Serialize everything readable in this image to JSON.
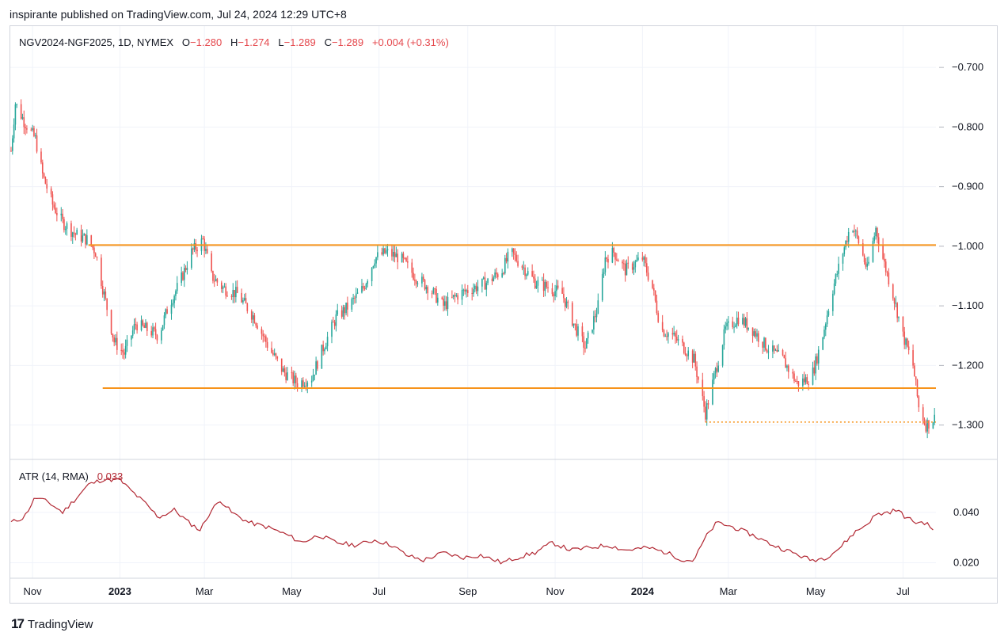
{
  "header": {
    "published": "inspirante published on TradingView.com, Jul 24, 2024 12:29 UTC+8"
  },
  "legend": {
    "symbol": "NGV2024-NGF2025, 1D, NYMEX",
    "o_label": "O",
    "o_value": "−1.280",
    "h_label": "H",
    "h_value": "−1.274",
    "l_label": "L",
    "l_value": "−1.289",
    "c_label": "C",
    "c_value": "−1.289",
    "change": "+0.004 (+0.31%)"
  },
  "atr": {
    "label": "ATR (14, RMA)",
    "value": "0.033"
  },
  "brand": {
    "logo": "17",
    "name": "TradingView"
  },
  "colors": {
    "up": "#26a69a",
    "down": "#ef5350",
    "level": "#f7931a",
    "atr_line": "#b22833",
    "grid": "#f0f3fa"
  },
  "chart_data": [
    {
      "type": "candlestick",
      "title": "NGV2024-NGF2025, 1D, NYMEX",
      "xlim": [
        "2022-10-17",
        "2024-07-24"
      ],
      "ylim": [
        -1.355,
        -0.64
      ],
      "y_ticks": [
        "−0.700",
        "−0.800",
        "−0.900",
        "−1.000",
        "−1.100",
        "−1.200",
        "−1.300"
      ],
      "y_tick_values": [
        -0.7,
        -0.8,
        -0.9,
        -1.0,
        -1.1,
        -1.2,
        -1.3
      ],
      "x_ticks": [
        {
          "label": "Nov",
          "date": "2022-11-01",
          "bold": false
        },
        {
          "label": "2023",
          "date": "2023-01-01",
          "bold": true
        },
        {
          "label": "Mar",
          "date": "2023-03-01",
          "bold": false
        },
        {
          "label": "May",
          "date": "2023-05-01",
          "bold": false
        },
        {
          "label": "Jul",
          "date": "2023-07-01",
          "bold": false
        },
        {
          "label": "Sep",
          "date": "2023-09-01",
          "bold": false
        },
        {
          "label": "Nov",
          "date": "2023-11-01",
          "bold": false
        },
        {
          "label": "2024",
          "date": "2024-01-01",
          "bold": true
        },
        {
          "label": "Mar",
          "date": "2024-03-01",
          "bold": false
        },
        {
          "label": "May",
          "date": "2024-05-01",
          "bold": false
        },
        {
          "label": "Jul",
          "date": "2024-07-01",
          "bold": false
        }
      ],
      "path": [
        [
          "2022-10-17",
          -0.84
        ],
        [
          "2022-10-20",
          -0.76
        ],
        [
          "2022-10-26",
          -0.79
        ],
        [
          "2022-11-03",
          -0.82
        ],
        [
          "2022-11-08",
          -0.88
        ],
        [
          "2022-11-15",
          -0.93
        ],
        [
          "2022-11-22",
          -0.96
        ],
        [
          "2022-12-01",
          -0.98
        ],
        [
          "2022-12-10",
          -0.99
        ],
        [
          "2022-12-15",
          -1.01
        ],
        [
          "2022-12-20",
          -1.07
        ],
        [
          "2022-12-28",
          -1.16
        ],
        [
          "2023-01-04",
          -1.18
        ],
        [
          "2023-01-12",
          -1.13
        ],
        [
          "2023-01-20",
          -1.14
        ],
        [
          "2023-01-28",
          -1.15
        ],
        [
          "2023-02-04",
          -1.1
        ],
        [
          "2023-02-12",
          -1.06
        ],
        [
          "2023-02-20",
          -1.01
        ],
        [
          "2023-02-28",
          -0.99
        ],
        [
          "2023-03-06",
          -1.05
        ],
        [
          "2023-03-14",
          -1.07
        ],
        [
          "2023-03-24",
          -1.08
        ],
        [
          "2023-04-05",
          -1.12
        ],
        [
          "2023-04-15",
          -1.17
        ],
        [
          "2023-04-25",
          -1.21
        ],
        [
          "2023-05-05",
          -1.23
        ],
        [
          "2023-05-15",
          -1.22
        ],
        [
          "2023-05-23",
          -1.17
        ],
        [
          "2023-06-01",
          -1.12
        ],
        [
          "2023-06-10",
          -1.1
        ],
        [
          "2023-06-20",
          -1.07
        ],
        [
          "2023-06-28",
          -1.02
        ],
        [
          "2023-07-06",
          -1.01
        ],
        [
          "2023-07-16",
          -1.02
        ],
        [
          "2023-07-26",
          -1.05
        ],
        [
          "2023-08-05",
          -1.07
        ],
        [
          "2023-08-15",
          -1.1
        ],
        [
          "2023-08-26",
          -1.08
        ],
        [
          "2023-09-05",
          -1.07
        ],
        [
          "2023-09-15",
          -1.06
        ],
        [
          "2023-09-25",
          -1.04
        ],
        [
          "2023-10-01",
          -1.01
        ],
        [
          "2023-10-08",
          -1.03
        ],
        [
          "2023-10-18",
          -1.06
        ],
        [
          "2023-10-28",
          -1.07
        ],
        [
          "2023-11-06",
          -1.08
        ],
        [
          "2023-11-14",
          -1.13
        ],
        [
          "2023-11-22",
          -1.17
        ],
        [
          "2023-12-01",
          -1.1
        ],
        [
          "2023-12-06",
          -1.02
        ],
        [
          "2023-12-12",
          -1.01
        ],
        [
          "2023-12-20",
          -1.04
        ],
        [
          "2024-01-01",
          -1.02
        ],
        [
          "2024-01-08",
          -1.07
        ],
        [
          "2024-01-14",
          -1.14
        ],
        [
          "2024-01-22",
          -1.15
        ],
        [
          "2024-01-30",
          -1.17
        ],
        [
          "2024-02-06",
          -1.19
        ],
        [
          "2024-02-14",
          -1.28
        ],
        [
          "2024-02-20",
          -1.22
        ],
        [
          "2024-02-28",
          -1.14
        ],
        [
          "2024-03-08",
          -1.12
        ],
        [
          "2024-03-18",
          -1.14
        ],
        [
          "2024-03-28",
          -1.17
        ],
        [
          "2024-04-08",
          -1.19
        ],
        [
          "2024-04-18",
          -1.23
        ],
        [
          "2024-04-28",
          -1.22
        ],
        [
          "2024-05-05",
          -1.16
        ],
        [
          "2024-05-12",
          -1.08
        ],
        [
          "2024-05-20",
          -1.01
        ],
        [
          "2024-05-26",
          -0.96
        ],
        [
          "2024-06-01",
          -1.0
        ],
        [
          "2024-06-06",
          -1.04
        ],
        [
          "2024-06-12",
          -0.97
        ],
        [
          "2024-06-18",
          -1.03
        ],
        [
          "2024-06-24",
          -1.08
        ],
        [
          "2024-07-01",
          -1.15
        ],
        [
          "2024-07-08",
          -1.2
        ],
        [
          "2024-07-12",
          -1.27
        ],
        [
          "2024-07-17",
          -1.3
        ],
        [
          "2024-07-23",
          -1.289
        ]
      ],
      "last_candle": {
        "open": -1.28,
        "high": -1.274,
        "low": -1.289,
        "close": -1.289,
        "change": 0.004
      },
      "levels": [
        {
          "style": "solid",
          "value": -0.998,
          "from": "2022-12-10",
          "to": "2024-07-24"
        },
        {
          "style": "solid",
          "value": -1.238,
          "from": "2022-12-20",
          "to": "2024-07-24"
        },
        {
          "style": "dotted",
          "value": -1.295,
          "from": "2024-02-14",
          "to": "2024-07-24"
        }
      ]
    },
    {
      "type": "line",
      "title": "ATR (14, RMA)",
      "ylim": [
        0.0145,
        0.0585
      ],
      "y_ticks": [
        "0.040",
        "0.020"
      ],
      "y_tick_values": [
        0.04,
        0.02
      ],
      "series": [
        {
          "name": "ATR (14, RMA)",
          "points": [
            [
              "2022-10-17",
              0.036
            ],
            [
              "2022-10-26",
              0.038
            ],
            [
              "2022-11-03",
              0.046
            ],
            [
              "2022-11-12",
              0.044
            ],
            [
              "2022-11-22",
              0.04
            ],
            [
              "2022-12-02",
              0.046
            ],
            [
              "2022-12-10",
              0.051
            ],
            [
              "2022-12-20",
              0.053
            ],
            [
              "2023-01-01",
              0.053
            ],
            [
              "2023-01-08",
              0.049
            ],
            [
              "2023-01-18",
              0.044
            ],
            [
              "2023-01-28",
              0.038
            ],
            [
              "2023-02-08",
              0.041
            ],
            [
              "2023-02-18",
              0.036
            ],
            [
              "2023-02-26",
              0.033
            ],
            [
              "2023-03-05",
              0.04
            ],
            [
              "2023-03-12",
              0.045
            ],
            [
              "2023-03-20",
              0.04
            ],
            [
              "2023-04-01",
              0.036
            ],
            [
              "2023-04-15",
              0.034
            ],
            [
              "2023-04-28",
              0.031
            ],
            [
              "2023-05-08",
              0.028
            ],
            [
              "2023-05-20",
              0.031
            ],
            [
              "2023-06-01",
              0.028
            ],
            [
              "2023-06-15",
              0.027
            ],
            [
              "2023-06-28",
              0.029
            ],
            [
              "2023-07-10",
              0.027
            ],
            [
              "2023-07-20",
              0.023
            ],
            [
              "2023-08-01",
              0.021
            ],
            [
              "2023-08-15",
              0.024
            ],
            [
              "2023-08-28",
              0.022
            ],
            [
              "2023-09-10",
              0.023
            ],
            [
              "2023-09-25",
              0.02
            ],
            [
              "2023-10-05",
              0.022
            ],
            [
              "2023-10-18",
              0.024
            ],
            [
              "2023-10-30",
              0.028
            ],
            [
              "2023-11-12",
              0.025
            ],
            [
              "2023-11-25",
              0.026
            ],
            [
              "2023-12-08",
              0.027
            ],
            [
              "2023-12-20",
              0.025
            ],
            [
              "2024-01-05",
              0.026
            ],
            [
              "2024-01-18",
              0.024
            ],
            [
              "2024-01-30",
              0.021
            ],
            [
              "2024-02-06",
              0.021
            ],
            [
              "2024-02-14",
              0.03
            ],
            [
              "2024-02-22",
              0.036
            ],
            [
              "2024-03-05",
              0.034
            ],
            [
              "2024-03-18",
              0.031
            ],
            [
              "2024-04-01",
              0.027
            ],
            [
              "2024-04-15",
              0.024
            ],
            [
              "2024-04-28",
              0.021
            ],
            [
              "2024-05-08",
              0.022
            ],
            [
              "2024-05-18",
              0.026
            ],
            [
              "2024-05-28",
              0.032
            ],
            [
              "2024-06-05",
              0.035
            ],
            [
              "2024-06-12",
              0.039
            ],
            [
              "2024-06-20",
              0.04
            ],
            [
              "2024-06-27",
              0.041
            ],
            [
              "2024-07-03",
              0.038
            ],
            [
              "2024-07-10",
              0.036
            ],
            [
              "2024-07-16",
              0.036
            ],
            [
              "2024-07-23",
              0.033
            ]
          ]
        }
      ]
    }
  ]
}
